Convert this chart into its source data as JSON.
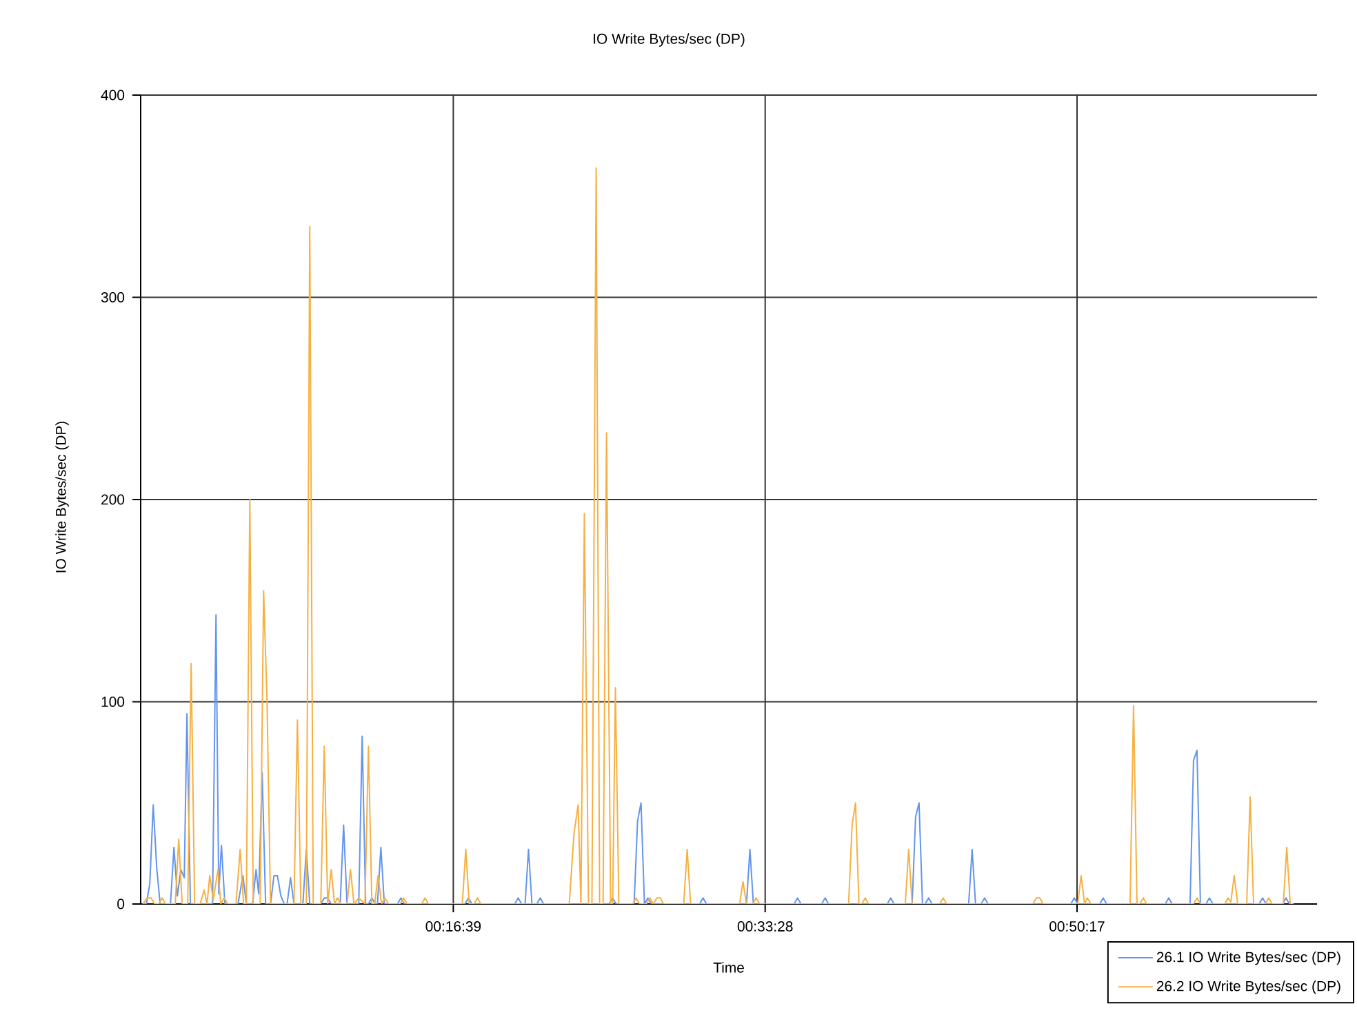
{
  "chart_data": {
    "type": "line",
    "title": "IO Write Bytes/sec (DP)",
    "xlabel": "Time",
    "ylabel": "IO Write Bytes/sec (DP)",
    "xlim": [
      -0.0035,
      1.0538
    ],
    "xticks": [
      {
        "value": 0.2775,
        "label": "00:16:39"
      },
      {
        "value": 0.5578,
        "label": "00:33:28"
      },
      {
        "value": 0.8381,
        "label": "00:50:17"
      }
    ],
    "ylim": [
      0,
      400
    ],
    "yticks": [
      0,
      100,
      200,
      300,
      400
    ],
    "grid": true,
    "legend": "bottom right",
    "series": [
      {
        "name": "26.1 IO Write Bytes/sec (DP)",
        "color": "#6495ed",
        "x": [
          -0.0015,
          0.0016,
          0.0047,
          0.0078,
          0.0109,
          0.014,
          0.0233,
          0.0264,
          0.0295,
          0.0326,
          0.0357,
          0.0381,
          0.0412,
          0.0611,
          0.0642,
          0.0667,
          0.0691,
          0.0722,
          0.084,
          0.0884,
          0.0915,
          0.0971,
          0.1002,
          0.1026,
          0.1057,
          0.1088,
          0.1132,
          0.1163,
          0.1194,
          0.1225,
          0.1256,
          0.1281,
          0.1312,
          0.1343,
          0.1423,
          0.1454,
          0.1485,
          0.1584,
          0.1615,
          0.1646,
          0.1677,
          0.1758,
          0.1789,
          0.182,
          0.1925,
          0.1956,
          0.1987,
          0.2012,
          0.2043,
          0.2074,
          0.2093,
          0.2124,
          0.2155,
          0.2273,
          0.2304,
          0.2335,
          0.288,
          0.2911,
          0.2942,
          0.3327,
          0.3358,
          0.3389,
          0.342,
          0.3451,
          0.3482,
          0.3525,
          0.3556,
          0.3587,
          0.4176,
          0.4207,
          0.4238,
          0.44,
          0.4431,
          0.4462,
          0.4493,
          0.4524,
          0.4555,
          0.4989,
          0.502,
          0.5051,
          0.541,
          0.5441,
          0.5472,
          0.5838,
          0.5869,
          0.59,
          0.6086,
          0.6117,
          0.6148,
          0.6675,
          0.6706,
          0.6737,
          0.6899,
          0.693,
          0.6961,
          0.6992,
          0.7016,
          0.7047,
          0.7078,
          0.7407,
          0.7438,
          0.7469,
          0.7519,
          0.755,
          0.7581,
          0.8325,
          0.8356,
          0.8387,
          0.8585,
          0.8616,
          0.8647,
          0.9174,
          0.9205,
          0.9236,
          0.9397,
          0.9428,
          0.9459,
          0.949,
          0.954,
          0.9571,
          0.9602,
          1.0018,
          1.0049,
          1.008,
          1.0228,
          1.0259,
          1.029,
          1.0328
        ],
        "values": [
          0,
          0,
          10,
          49,
          18,
          0,
          0,
          28,
          4,
          17,
          13,
          94,
          0,
          0,
          143,
          5,
          29,
          0,
          0,
          14,
          0,
          0,
          17,
          5,
          65,
          0,
          0,
          14,
          14,
          4,
          0,
          0,
          13,
          0,
          0,
          27,
          0,
          0,
          3,
          3,
          0,
          0,
          39,
          0,
          0,
          83,
          0,
          0,
          3,
          0,
          0,
          28,
          0,
          0,
          3,
          0,
          0,
          3,
          0,
          0,
          3,
          0,
          0,
          27,
          0,
          0,
          3,
          0,
          0,
          3,
          0,
          0,
          41,
          50,
          0,
          3,
          0,
          0,
          3,
          0,
          0,
          27,
          0,
          0,
          3,
          0,
          0,
          3,
          0,
          0,
          3,
          0,
          0,
          43,
          50,
          0,
          0,
          3,
          0,
          0,
          27,
          0,
          0,
          3,
          0,
          0,
          3,
          0,
          0,
          3,
          0,
          0,
          3,
          0,
          0,
          71,
          76,
          0,
          0,
          3,
          0,
          0,
          3,
          0,
          0,
          3,
          0,
          0
        ]
      },
      {
        "name": "26.2 IO Write Bytes/sec (DP)",
        "color": "#f6b042",
        "x": [
          -0.0015,
          0.0022,
          0.0059,
          0.009,
          0.0127,
          0.0158,
          0.0189,
          0.0276,
          0.0307,
          0.0338,
          0.0388,
          0.0419,
          0.045,
          0.0499,
          0.0536,
          0.0561,
          0.0586,
          0.0617,
          0.066,
          0.0685,
          0.0716,
          0.0747,
          0.0822,
          0.0859,
          0.089,
          0.0915,
          0.0946,
          0.0977,
          0.1039,
          0.107,
          0.1101,
          0.1132,
          0.1343,
          0.1374,
          0.1405,
          0.1454,
          0.1485,
          0.1516,
          0.1584,
          0.1615,
          0.1646,
          0.1677,
          0.1708,
          0.1733,
          0.1764,
          0.182,
          0.1851,
          0.1882,
          0.1925,
          0.1981,
          0.2012,
          0.2043,
          0.2068,
          0.2099,
          0.213,
          0.2161,
          0.2192,
          0.2297,
          0.2328,
          0.2359,
          0.249,
          0.2521,
          0.2552,
          0.2856,
          0.2887,
          0.2918,
          0.2961,
          0.2992,
          0.3023,
          0.3817,
          0.386,
          0.3897,
          0.3922,
          0.3953,
          0.399,
          0.4021,
          0.4059,
          0.409,
          0.4121,
          0.4152,
          0.4189,
          0.4207,
          0.4232,
          0.4263,
          0.4387,
          0.4418,
          0.4449,
          0.4511,
          0.4542,
          0.4573,
          0.4604,
          0.4635,
          0.4666,
          0.4846,
          0.4877,
          0.4908,
          0.5348,
          0.5379,
          0.541,
          0.5466,
          0.5497,
          0.5528,
          0.6328,
          0.6359,
          0.639,
          0.6421,
          0.6446,
          0.6477,
          0.6508,
          0.6837,
          0.6868,
          0.6899,
          0.7147,
          0.7178,
          0.7209,
          0.7984,
          0.8015,
          0.8046,
          0.8077,
          0.8387,
          0.8418,
          0.8449,
          0.8474,
          0.8505,
          0.8858,
          0.8889,
          0.892,
          0.8945,
          0.8976,
          0.9007,
          0.9428,
          0.9459,
          0.949,
          0.9708,
          0.9739,
          0.9763,
          0.9794,
          0.9825,
          0.9906,
          0.9937,
          0.9968,
          1.0073,
          1.0104,
          1.0135,
          1.0235,
          1.0266,
          1.0297,
          1.0328
        ],
        "values": [
          0,
          3,
          3,
          0,
          0,
          3,
          0,
          0,
          32,
          0,
          0,
          119,
          0,
          0,
          7,
          0,
          14,
          2,
          17,
          0,
          3,
          0,
          0,
          27,
          0,
          0,
          200,
          0,
          0,
          155,
          100,
          0,
          0,
          91,
          0,
          0,
          335,
          0,
          0,
          78,
          0,
          17,
          0,
          3,
          0,
          0,
          17,
          0,
          3,
          0,
          78,
          0,
          0,
          14,
          0,
          3,
          0,
          0,
          3,
          0,
          0,
          3,
          0,
          0,
          27,
          0,
          0,
          3,
          0,
          0,
          35,
          49,
          0,
          193,
          0,
          0,
          364,
          0,
          0,
          233,
          0,
          0,
          107,
          0,
          0,
          3,
          0,
          0,
          3,
          0,
          3,
          3,
          0,
          0,
          27,
          0,
          0,
          11,
          0,
          0,
          3,
          0,
          0,
          39,
          50,
          0,
          0,
          3,
          0,
          0,
          27,
          0,
          0,
          3,
          0,
          0,
          3,
          3,
          0,
          0,
          14,
          0,
          3,
          0,
          0,
          98,
          0,
          0,
          3,
          0,
          0,
          3,
          0,
          0,
          3,
          1,
          14,
          0,
          0,
          53,
          0,
          0,
          3,
          0,
          0,
          28,
          0,
          0
        ]
      }
    ]
  }
}
